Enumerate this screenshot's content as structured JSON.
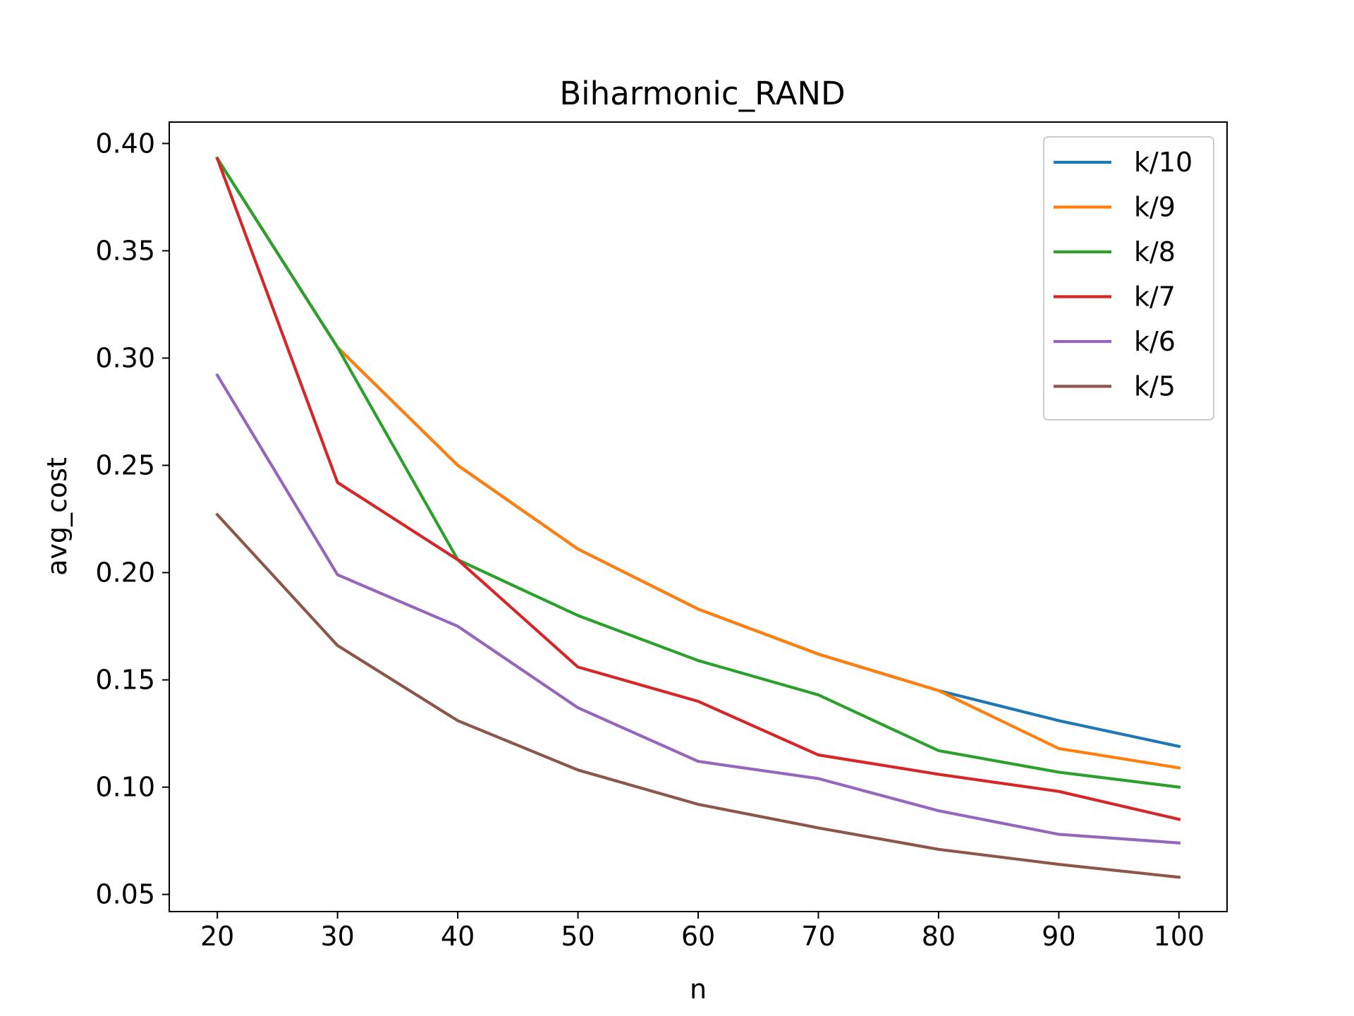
{
  "chart_data": {
    "type": "line",
    "title": "Biharmonic_RAND",
    "xlabel": "n",
    "ylabel": "avg_cost",
    "x": [
      20,
      30,
      40,
      50,
      60,
      70,
      80,
      90,
      100
    ],
    "xlim": [
      16,
      104
    ],
    "ylim": [
      0.042,
      0.41
    ],
    "xticks": [
      20,
      30,
      40,
      50,
      60,
      70,
      80,
      90,
      100
    ],
    "yticks": [
      0.05,
      0.1,
      0.15,
      0.2,
      0.25,
      0.3,
      0.35,
      0.4
    ],
    "ytick_labels": [
      "0.05",
      "0.10",
      "0.15",
      "0.20",
      "0.25",
      "0.30",
      "0.35",
      "0.40"
    ],
    "grid": false,
    "legend_position": "top-right",
    "series": [
      {
        "name": "k/10",
        "color": "#1f77b4",
        "values": [
          0.393,
          0.305,
          0.25,
          0.211,
          0.183,
          0.162,
          0.145,
          0.131,
          0.119
        ]
      },
      {
        "name": "k/9",
        "color": "#ff7f0e",
        "values": [
          0.393,
          0.305,
          0.25,
          0.211,
          0.183,
          0.162,
          0.145,
          0.118,
          0.109
        ]
      },
      {
        "name": "k/8",
        "color": "#2ca02c",
        "values": [
          0.393,
          0.305,
          0.206,
          0.18,
          0.159,
          0.143,
          0.117,
          0.107,
          0.1
        ]
      },
      {
        "name": "k/7",
        "color": "#d62728",
        "values": [
          0.393,
          0.242,
          0.206,
          0.156,
          0.14,
          0.115,
          0.106,
          0.098,
          0.085
        ]
      },
      {
        "name": "k/6",
        "color": "#9467bd",
        "values": [
          0.292,
          0.199,
          0.175,
          0.137,
          0.112,
          0.104,
          0.089,
          0.078,
          0.074
        ]
      },
      {
        "name": "k/5",
        "color": "#8c564b",
        "values": [
          0.227,
          0.166,
          0.131,
          0.108,
          0.092,
          0.081,
          0.071,
          0.064,
          0.058
        ]
      }
    ]
  }
}
